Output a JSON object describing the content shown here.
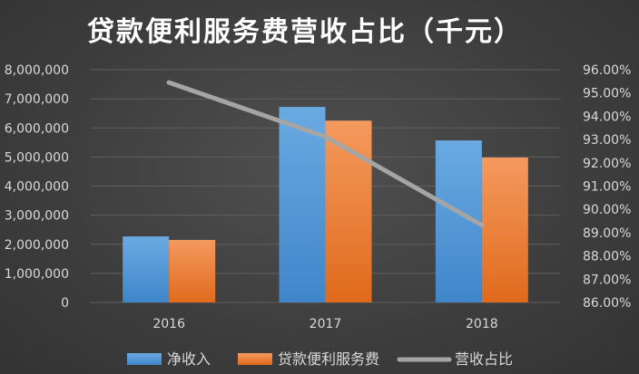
{
  "chart_data": {
    "type": "bar",
    "title": "贷款便利服务费营收占比（千元）",
    "categories": [
      "2016",
      "2017",
      "2018"
    ],
    "series": [
      {
        "name": "净收入",
        "type": "bar",
        "axis": "left",
        "color": "#5b9bd5",
        "values": [
          2270000,
          6720000,
          5570000
        ]
      },
      {
        "name": "贷款便利服务费",
        "type": "bar",
        "axis": "left",
        "color": "#ed7d31",
        "values": [
          2150000,
          6250000,
          4980000
        ]
      },
      {
        "name": "营收占比",
        "type": "line",
        "axis": "right",
        "color": "#a5a5a5",
        "values": [
          95.45,
          93.12,
          89.32
        ]
      }
    ],
    "ylim_left": [
      0,
      8000000
    ],
    "ylim_right": [
      86,
      96
    ],
    "left_ticks": [
      "0",
      "1,000,000",
      "2,000,000",
      "3,000,000",
      "4,000,000",
      "5,000,000",
      "6,000,000",
      "7,000,000",
      "8,000,000"
    ],
    "right_ticks": [
      "86.00%",
      "87.00%",
      "88.00%",
      "89.00%",
      "90.00%",
      "91.00%",
      "92.00%",
      "93.00%",
      "94.00%",
      "95.00%",
      "96.00%"
    ],
    "grid": true,
    "legend_position": "bottom"
  }
}
